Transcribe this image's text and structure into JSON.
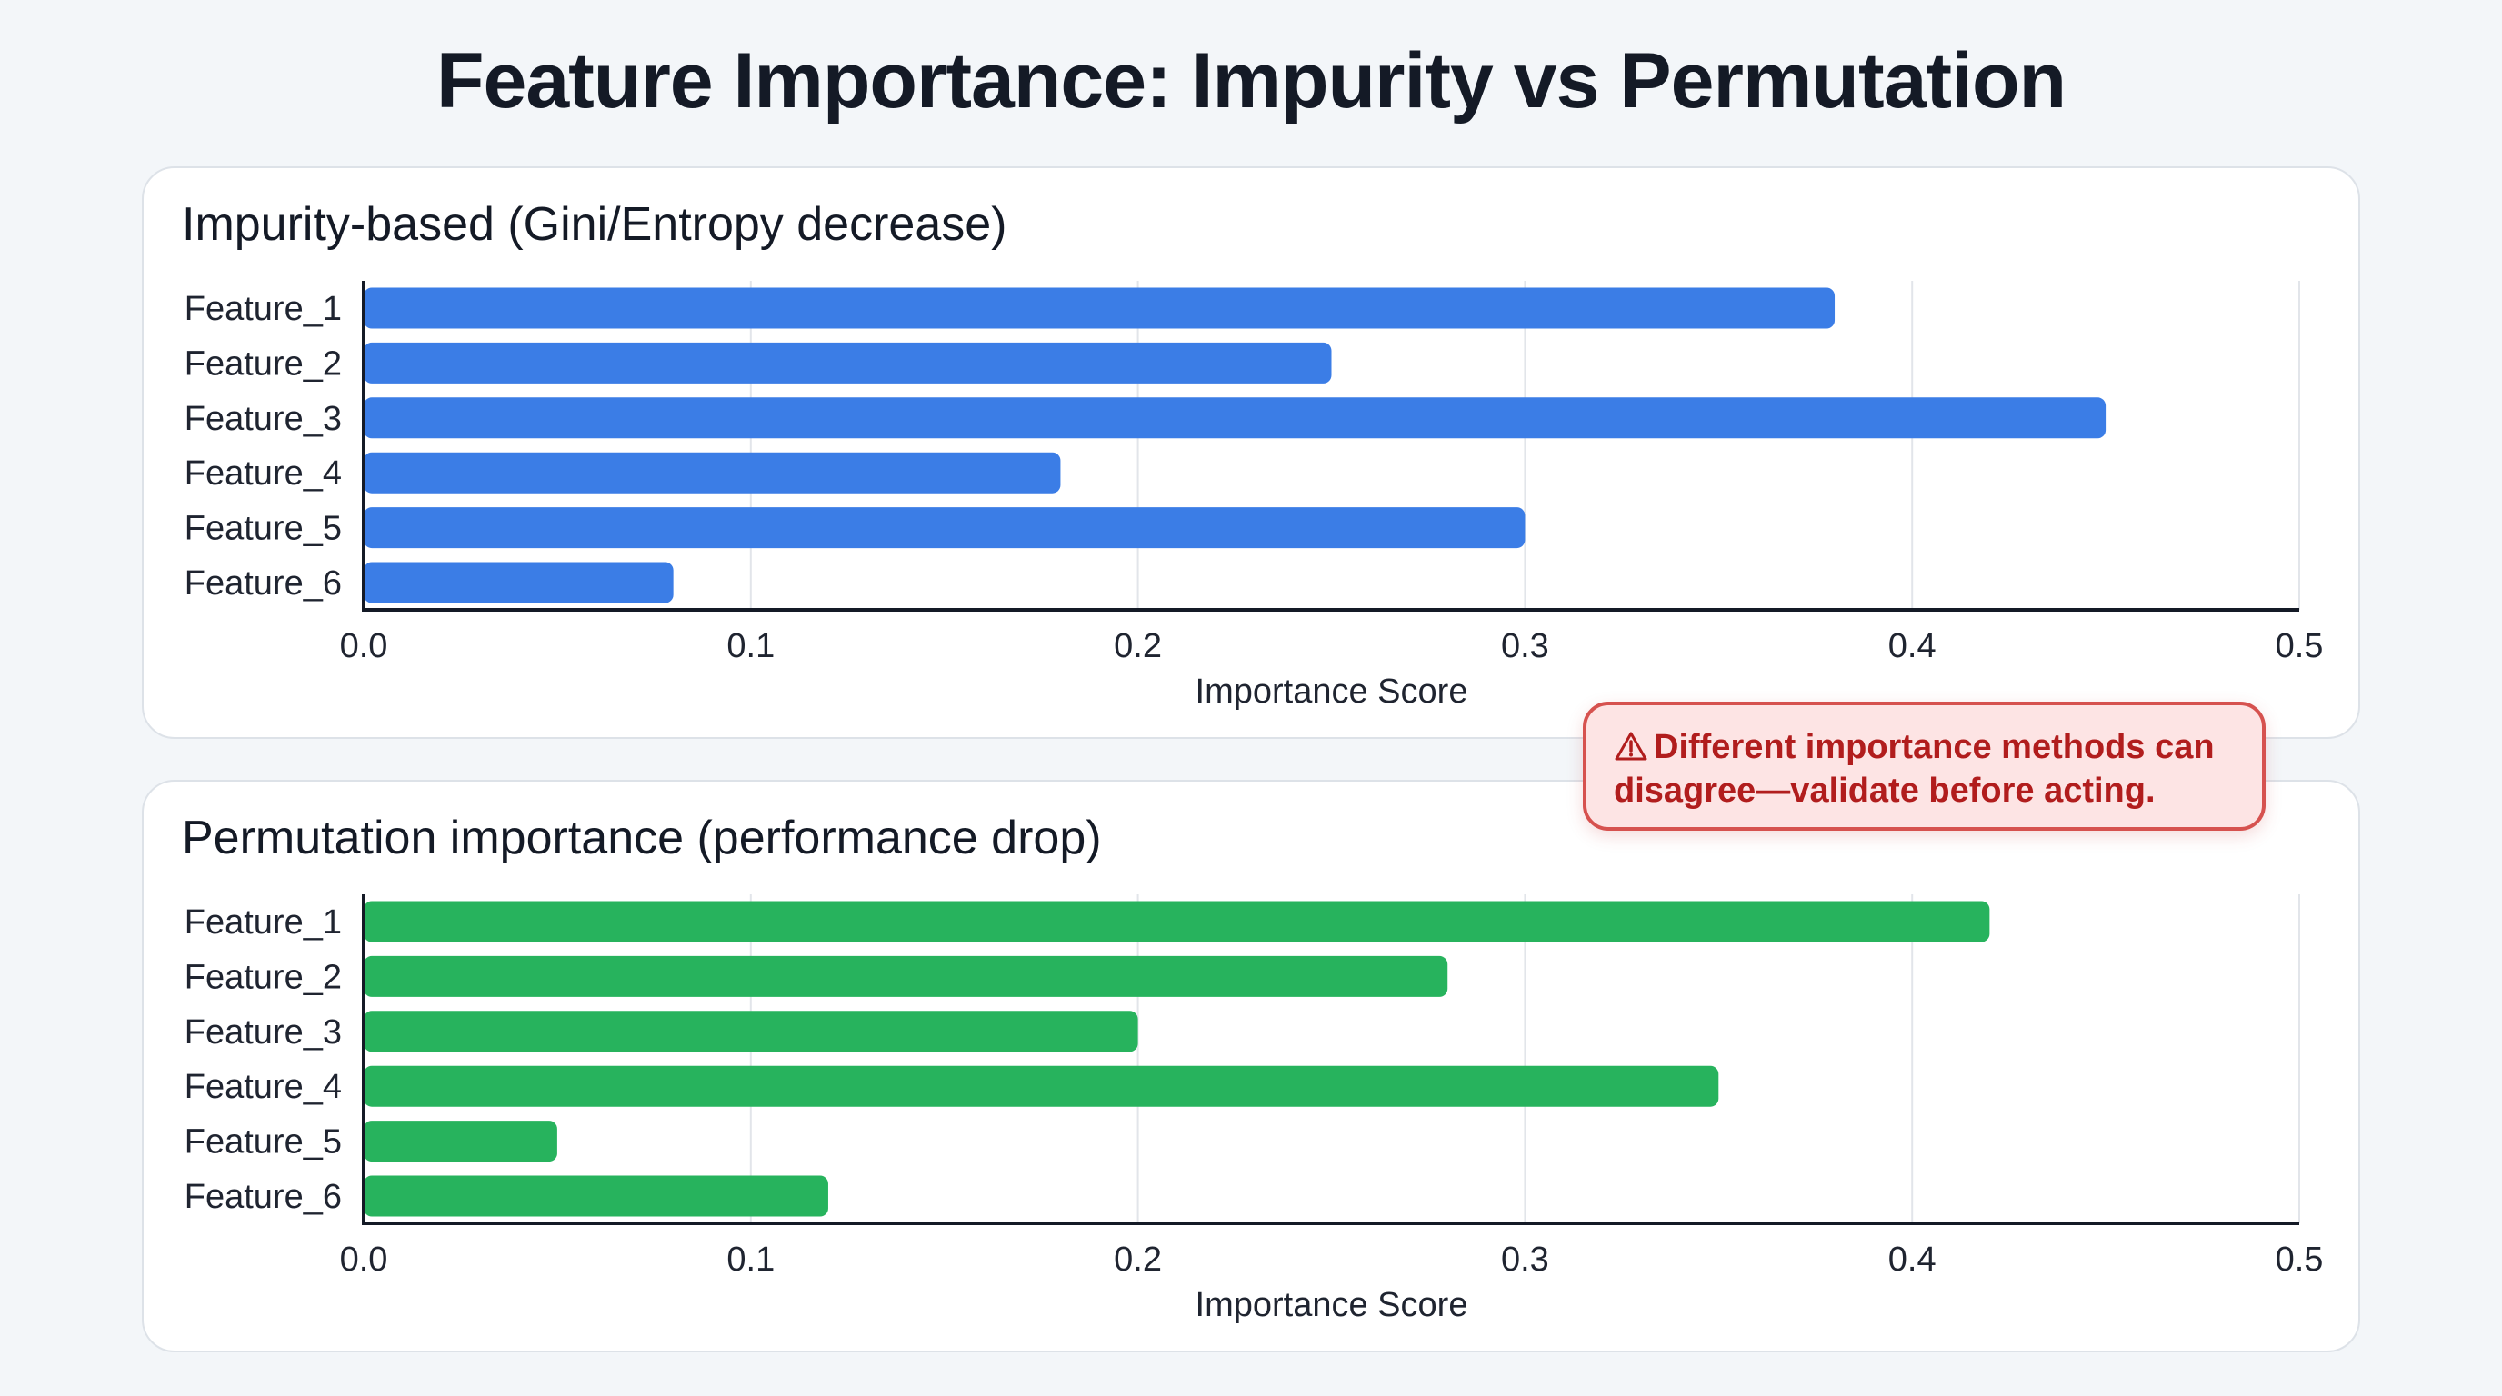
{
  "title": "Feature Importance: Impurity vs Permutation",
  "warning": {
    "icon": "warning-triangle-icon",
    "text": "Different importance methods can disagree—validate before acting."
  },
  "colors": {
    "impurity": "#3b7de6",
    "permutation": "#27b35d",
    "warning": "#b11d1d"
  },
  "chart_data": [
    {
      "type": "bar",
      "orientation": "horizontal",
      "title": "Impurity-based (Gini/Entropy decrease)",
      "categories": [
        "Feature_1",
        "Feature_2",
        "Feature_3",
        "Feature_4",
        "Feature_5",
        "Feature_6"
      ],
      "values": [
        0.38,
        0.25,
        0.45,
        0.18,
        0.3,
        0.08
      ],
      "xlabel": "Importance Score",
      "ylabel": "",
      "xlim": [
        0,
        0.5
      ],
      "xticks": [
        "0.0",
        "0.1",
        "0.2",
        "0.3",
        "0.4",
        "0.5"
      ],
      "grid": true
    },
    {
      "type": "bar",
      "orientation": "horizontal",
      "title": "Permutation importance (performance drop)",
      "categories": [
        "Feature_1",
        "Feature_2",
        "Feature_3",
        "Feature_4",
        "Feature_5",
        "Feature_6"
      ],
      "values": [
        0.42,
        0.28,
        0.2,
        0.35,
        0.05,
        0.12
      ],
      "xlabel": "Importance Score",
      "ylabel": "",
      "xlim": [
        0,
        0.5
      ],
      "xticks": [
        "0.0",
        "0.1",
        "0.2",
        "0.3",
        "0.4",
        "0.5"
      ],
      "grid": true
    }
  ]
}
